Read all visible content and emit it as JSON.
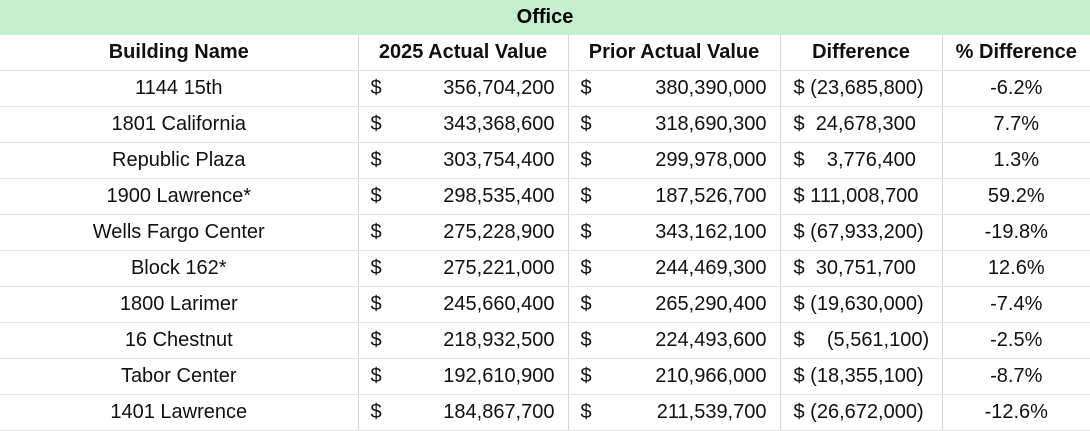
{
  "title": "Office",
  "columns": [
    "Building Name",
    "2025 Actual Value",
    "Prior Actual Value",
    "Difference",
    "% Difference"
  ],
  "currency_symbol": "$",
  "rows": [
    {
      "name": "1144 15th",
      "actual_2025": "356,704,200",
      "prior": "380,390,000",
      "difference": "$ (23,685,800)",
      "pct": "-6.2%"
    },
    {
      "name": "1801 California",
      "actual_2025": "343,368,600",
      "prior": "318,690,300",
      "difference": "$  24,678,300",
      "pct": "7.7%"
    },
    {
      "name": "Republic Plaza",
      "actual_2025": "303,754,400",
      "prior": "299,978,000",
      "difference": "$    3,776,400",
      "pct": "1.3%"
    },
    {
      "name": "1900 Lawrence*",
      "actual_2025": "298,535,400",
      "prior": "187,526,700",
      "difference": "$ 111,008,700",
      "pct": "59.2%"
    },
    {
      "name": "Wells Fargo Center",
      "actual_2025": "275,228,900",
      "prior": "343,162,100",
      "difference": "$ (67,933,200)",
      "pct": "-19.8%"
    },
    {
      "name": "Block 162*",
      "actual_2025": "275,221,000",
      "prior": "244,469,300",
      "difference": "$  30,751,700",
      "pct": "12.6%"
    },
    {
      "name": "1800 Larimer",
      "actual_2025": "245,660,400",
      "prior": "265,290,400",
      "difference": "$ (19,630,000)",
      "pct": "-7.4%"
    },
    {
      "name": "16 Chestnut",
      "actual_2025": "218,932,500",
      "prior": "224,493,600",
      "difference": "$    (5,561,100)",
      "pct": "-2.5%"
    },
    {
      "name": "Tabor Center",
      "actual_2025": "192,610,900",
      "prior": "210,966,000",
      "difference": "$ (18,355,100)",
      "pct": "-8.7%"
    },
    {
      "name": "1401 Lawrence",
      "actual_2025": "184,867,700",
      "prior": "211,539,700",
      "difference": "$ (26,672,000)",
      "pct": "-12.6%"
    }
  ]
}
